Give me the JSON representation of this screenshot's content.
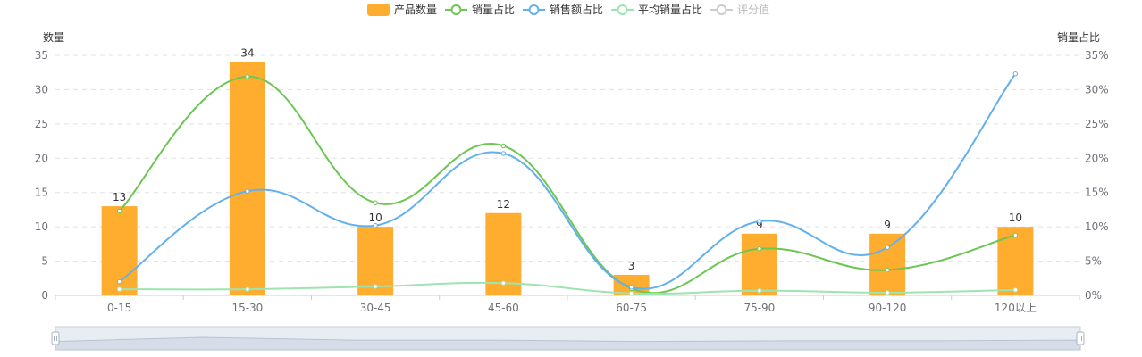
{
  "colors": {
    "bar": "#ffad2f",
    "sales_share": "#6bc652",
    "revenue_share": "#62b0ec",
    "avg_sales_share": "#9fe4b0",
    "rating": "#cccccc",
    "grid": "#e0e0e0",
    "axis": "#c9ced8",
    "zoom_fill": "#d6dde8"
  },
  "legend": [
    {
      "name": "产品数量",
      "icon": "bar-swatch-icon",
      "active": true
    },
    {
      "name": "销量占比",
      "icon": "line-marker-icon",
      "active": true
    },
    {
      "name": "销售额占比",
      "icon": "line-marker-icon",
      "active": true
    },
    {
      "name": "平均销量占比",
      "icon": "line-marker-icon",
      "active": true
    },
    {
      "name": "评分值",
      "icon": "line-marker-icon",
      "active": false
    }
  ],
  "chart_data": {
    "type": "bar",
    "title": "",
    "categories": [
      "0-15",
      "15-30",
      "30-45",
      "45-60",
      "60-75",
      "75-90",
      "90-120",
      "120以上"
    ],
    "y_left": {
      "label": "数量",
      "ticks": [
        "0",
        "5",
        "10",
        "15",
        "20",
        "25",
        "30",
        "35"
      ],
      "ylim": [
        0,
        35
      ]
    },
    "y_right": {
      "label": "销量占比",
      "ticks": [
        "0%",
        "5%",
        "10%",
        "15%",
        "20%",
        "25%",
        "30%",
        "35%"
      ],
      "ylim": [
        0,
        35
      ]
    },
    "bar_series": {
      "name": "产品数量",
      "values": [
        13,
        34,
        10,
        12,
        3,
        9,
        9,
        10
      ],
      "labels": [
        "13",
        "34",
        "10",
        "12",
        "3",
        "9",
        "9",
        "10"
      ]
    },
    "line_series": [
      {
        "name": "销量占比",
        "axis": "right",
        "values": [
          12.3,
          31.9,
          13.5,
          21.8,
          1.0,
          6.8,
          3.7,
          8.8
        ]
      },
      {
        "name": "销售额占比",
        "axis": "right",
        "values": [
          2.0,
          15.2,
          10.2,
          20.7,
          1.2,
          10.8,
          7.0,
          32.3
        ]
      },
      {
        "name": "平均销量占比",
        "axis": "right",
        "values": [
          0.9,
          0.9,
          1.3,
          1.8,
          0.3,
          0.7,
          0.4,
          0.8
        ]
      }
    ],
    "grid": true,
    "legend_position": "top-center",
    "zoom_profile": [
      0.6,
      0.9,
      0.7,
      0.7,
      0.6,
      0.65,
      0.65,
      0.7
    ]
  }
}
